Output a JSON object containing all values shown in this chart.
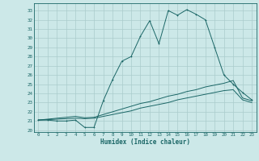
{
  "title": "",
  "xlabel": "Humidex (Indice chaleur)",
  "background_color": "#cce8e8",
  "grid_color": "#aacccc",
  "line_color": "#1a6666",
  "xlim": [
    -0.5,
    23.5
  ],
  "ylim": [
    19.8,
    33.8
  ],
  "xticks": [
    0,
    1,
    2,
    3,
    4,
    5,
    6,
    7,
    8,
    9,
    10,
    11,
    12,
    13,
    14,
    15,
    16,
    17,
    18,
    19,
    20,
    21,
    22,
    23
  ],
  "yticks": [
    20,
    21,
    22,
    23,
    24,
    25,
    26,
    27,
    28,
    29,
    30,
    31,
    32,
    33
  ],
  "series1_x": [
    0,
    1,
    2,
    3,
    4,
    5,
    6,
    7,
    8,
    9,
    10,
    11,
    12,
    13,
    14,
    15,
    16,
    17,
    18,
    19,
    20,
    21,
    22,
    23
  ],
  "series1_y": [
    21.1,
    21.1,
    21.0,
    21.0,
    21.1,
    20.3,
    20.3,
    23.2,
    25.5,
    27.5,
    28.0,
    30.2,
    31.9,
    29.4,
    33.0,
    32.5,
    33.1,
    32.6,
    32.0,
    29.0,
    26.0,
    25.0,
    24.1,
    23.3
  ],
  "series2_x": [
    0,
    1,
    2,
    3,
    4,
    5,
    6,
    7,
    8,
    9,
    10,
    11,
    12,
    13,
    14,
    15,
    16,
    17,
    18,
    19,
    20,
    21,
    22,
    23
  ],
  "series2_y": [
    21.1,
    21.15,
    21.2,
    21.25,
    21.3,
    21.25,
    21.3,
    21.5,
    21.7,
    21.9,
    22.1,
    22.4,
    22.6,
    22.8,
    23.0,
    23.3,
    23.5,
    23.7,
    23.9,
    24.1,
    24.3,
    24.4,
    23.3,
    23.0
  ],
  "series3_x": [
    0,
    1,
    2,
    3,
    4,
    5,
    6,
    7,
    8,
    9,
    10,
    11,
    12,
    13,
    14,
    15,
    16,
    17,
    18,
    19,
    20,
    21,
    22,
    23
  ],
  "series3_y": [
    21.1,
    21.2,
    21.3,
    21.4,
    21.5,
    21.35,
    21.4,
    21.7,
    22.0,
    22.3,
    22.6,
    22.9,
    23.1,
    23.4,
    23.7,
    23.9,
    24.2,
    24.4,
    24.7,
    24.9,
    25.1,
    25.4,
    23.5,
    23.2
  ]
}
